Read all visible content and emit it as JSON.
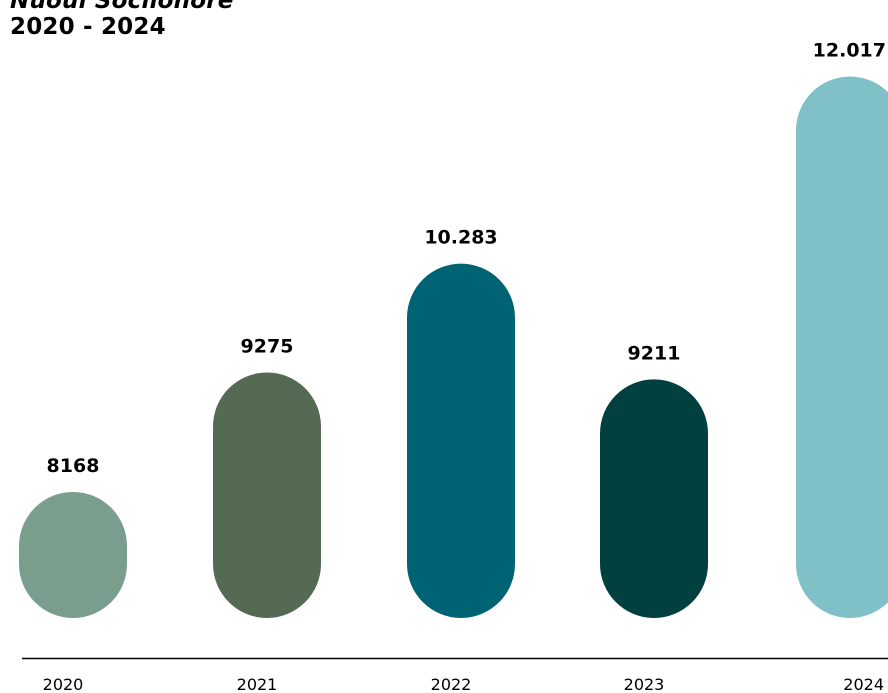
{
  "chart_data": {
    "type": "bar",
    "title": "Nuoui Sociionore",
    "subtitle": "2020 - 2024",
    "categories": [
      "2020",
      "2021",
      "2022",
      "2023",
      "2024"
    ],
    "values": [
      8168,
      9275,
      10283,
      9211,
      12017
    ],
    "value_labels": [
      "8168",
      "9275",
      "10.283",
      "9211",
      "12.017"
    ],
    "colors": [
      "#7a9e8e",
      "#546a52",
      "#006373",
      "#024040",
      "#7fc1c6"
    ],
    "legend": "none",
    "grid": false,
    "ylim": [
      7000,
      12300
    ]
  }
}
